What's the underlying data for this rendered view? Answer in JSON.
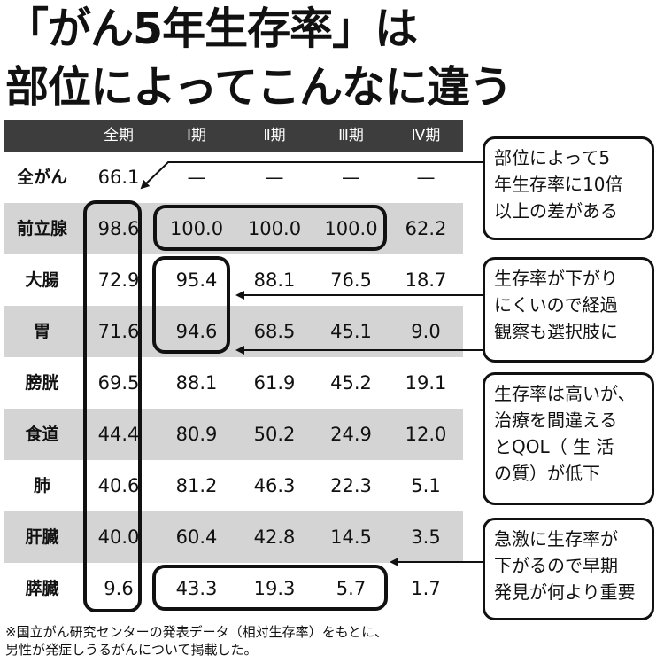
{
  "title": {
    "line1": "「がん5年生存率」は",
    "line2": "部位によってこんなに違う"
  },
  "table": {
    "headers": [
      "",
      "全期",
      "Ⅰ期",
      "Ⅱ期",
      "Ⅲ期",
      "Ⅳ期"
    ],
    "rows": [
      {
        "label": "全がん",
        "values": [
          "66.1",
          "—",
          "—",
          "—",
          "—"
        ]
      },
      {
        "label": "前立腺",
        "values": [
          "98.6",
          "100.0",
          "100.0",
          "100.0",
          "62.2"
        ]
      },
      {
        "label": "大腸",
        "values": [
          "72.9",
          "95.4",
          "88.1",
          "76.5",
          "18.7"
        ]
      },
      {
        "label": "胃",
        "values": [
          "71.6",
          "94.6",
          "68.5",
          "45.1",
          "9.0"
        ]
      },
      {
        "label": "膀胱",
        "values": [
          "69.5",
          "88.1",
          "61.9",
          "45.2",
          "19.1"
        ]
      },
      {
        "label": "食道",
        "values": [
          "44.4",
          "80.9",
          "50.2",
          "24.9",
          "12.0"
        ]
      },
      {
        "label": "肺",
        "values": [
          "40.6",
          "81.2",
          "46.3",
          "22.3",
          "5.1"
        ]
      },
      {
        "label": "肝臓",
        "values": [
          "40.0",
          "60.4",
          "42.8",
          "14.5",
          "3.5"
        ]
      },
      {
        "label": "膵臓",
        "values": [
          "9.6",
          "43.3",
          "19.3",
          "5.7",
          "1.7"
        ]
      }
    ]
  },
  "notes": [
    {
      "lines": [
        "部位によって5",
        "年生存率に10倍",
        "以上の差がある"
      ]
    },
    {
      "lines": [
        "生存率が下がり",
        "にくいので経過",
        "観察も選択肢に"
      ]
    },
    {
      "lines": [
        "生存率は高いが、",
        "治療を間違える",
        "とQOL（ 生 活",
        "の質）が低下"
      ]
    },
    {
      "lines": [
        "急激に生存率が",
        "下がるので早期",
        "発見が何より重要"
      ]
    }
  ],
  "footnote": {
    "line1": "※国立がん研究センターの発表データ（相対生存率）をもとに、",
    "line2": "男性が発症しうるがんについて掲載した。"
  }
}
